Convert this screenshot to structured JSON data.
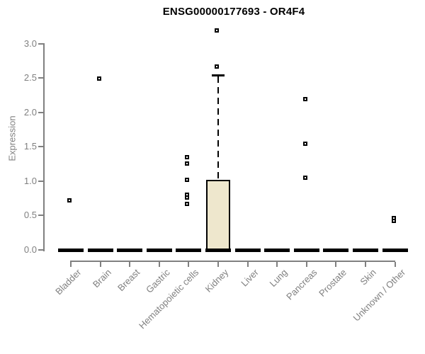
{
  "chart_data": {
    "type": "box",
    "title": "ENSG00000177693 - OR4F4",
    "ylabel": "Expression",
    "xlabel": "",
    "ylim": [
      0.0,
      3.2
    ],
    "yticks": [
      0.0,
      0.5,
      1.0,
      1.5,
      2.0,
      2.5,
      3.0
    ],
    "ytick_labels": [
      "0.0",
      "0.5",
      "1.0",
      "1.5",
      "2.0",
      "2.5",
      "3.0"
    ],
    "grid": false,
    "legend": null,
    "categories": [
      "Bladder",
      "Brain",
      "Breast",
      "Gastric",
      "Hematopoietic cells",
      "Kidney",
      "Liver",
      "Lung",
      "Pancreas",
      "Prostate",
      "Skin",
      "Unknown / Other"
    ],
    "boxes": [
      {
        "category": "Bladder",
        "q1": 0,
        "median": 0,
        "q3": 0,
        "whisker_low": 0,
        "whisker_high": 0,
        "outliers": [
          0.72
        ]
      },
      {
        "category": "Brain",
        "q1": 0,
        "median": 0,
        "q3": 0,
        "whisker_low": 0,
        "whisker_high": 0,
        "outliers": [
          2.49
        ]
      },
      {
        "category": "Breast",
        "q1": 0,
        "median": 0,
        "q3": 0,
        "whisker_low": 0,
        "whisker_high": 0,
        "outliers": []
      },
      {
        "category": "Gastric",
        "q1": 0,
        "median": 0,
        "q3": 0,
        "whisker_low": 0,
        "whisker_high": 0,
        "outliers": []
      },
      {
        "category": "Hematopoietic cells",
        "q1": 0,
        "median": 0,
        "q3": 0,
        "whisker_low": 0,
        "whisker_high": 0,
        "outliers": [
          0.66,
          0.76,
          0.8,
          1.02,
          1.25,
          1.35
        ]
      },
      {
        "category": "Kidney",
        "q1": 0,
        "median": 0,
        "q3": 1.02,
        "whisker_low": 0,
        "whisker_high": 2.54,
        "outliers": [
          2.66,
          3.19
        ]
      },
      {
        "category": "Liver",
        "q1": 0,
        "median": 0,
        "q3": 0,
        "whisker_low": 0,
        "whisker_high": 0,
        "outliers": []
      },
      {
        "category": "Lung",
        "q1": 0,
        "median": 0,
        "q3": 0,
        "whisker_low": 0,
        "whisker_high": 0,
        "outliers": []
      },
      {
        "category": "Pancreas",
        "q1": 0,
        "median": 0,
        "q3": 0,
        "whisker_low": 0,
        "whisker_high": 0,
        "outliers": [
          1.05,
          1.54,
          2.19
        ]
      },
      {
        "category": "Prostate",
        "q1": 0,
        "median": 0,
        "q3": 0,
        "whisker_low": 0,
        "whisker_high": 0,
        "outliers": []
      },
      {
        "category": "Skin",
        "q1": 0,
        "median": 0,
        "q3": 0,
        "whisker_low": 0,
        "whisker_high": 0,
        "outliers": []
      },
      {
        "category": "Unknown / Other",
        "q1": 0,
        "median": 0,
        "q3": 0,
        "whisker_low": 0,
        "whisker_high": 0,
        "outliers": [
          0.42,
          0.46
        ]
      }
    ],
    "colors": {
      "box_fill": "#eee7cd",
      "box_border": "#000000",
      "median": "#000000",
      "whisker": "#000000",
      "outlier_border": "#000000",
      "outlier_fill": "#ffffff",
      "axis": "#808080",
      "tick_label": "#808080",
      "title": "#000000",
      "background": "#ffffff"
    }
  }
}
